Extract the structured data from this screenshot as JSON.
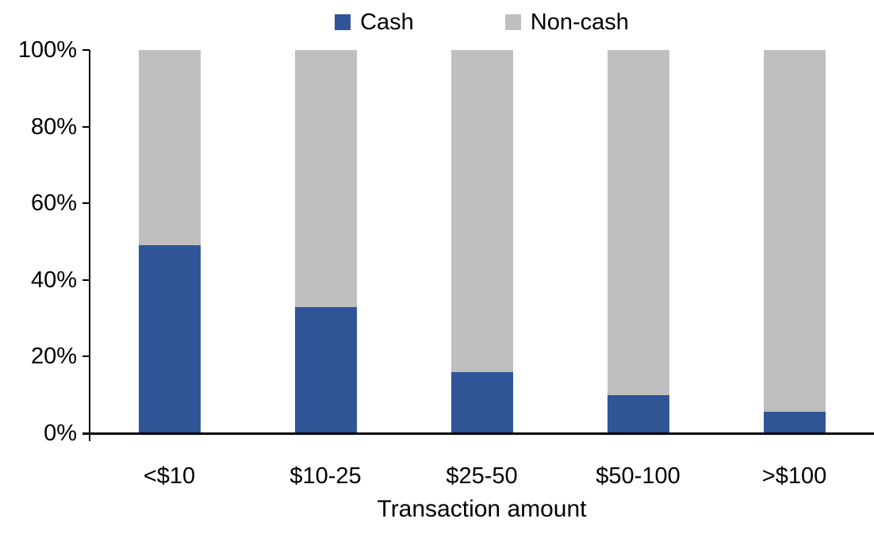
{
  "chart_data": {
    "type": "bar",
    "subtype": "stacked-100-percent",
    "categories": [
      "<$10",
      "$10-25",
      "$25-50",
      "$50-100",
      ">$100"
    ],
    "series": [
      {
        "name": "Cash",
        "color": "#2F5597",
        "values": [
          49,
          33,
          16,
          10,
          5.5
        ]
      },
      {
        "name": "Non-cash",
        "color": "#BFBFBF",
        "values": [
          51,
          67,
          84,
          90,
          94.5
        ]
      }
    ],
    "title": "",
    "xlabel": "Transaction amount",
    "ylabel": "",
    "ylim": [
      0,
      100
    ],
    "yticks": [
      0,
      20,
      40,
      60,
      80,
      100
    ],
    "ytick_suffix": "%",
    "grid": false,
    "legend_position": "top-center",
    "axis_color": "#000000",
    "background_color": "#FFFFFF"
  }
}
